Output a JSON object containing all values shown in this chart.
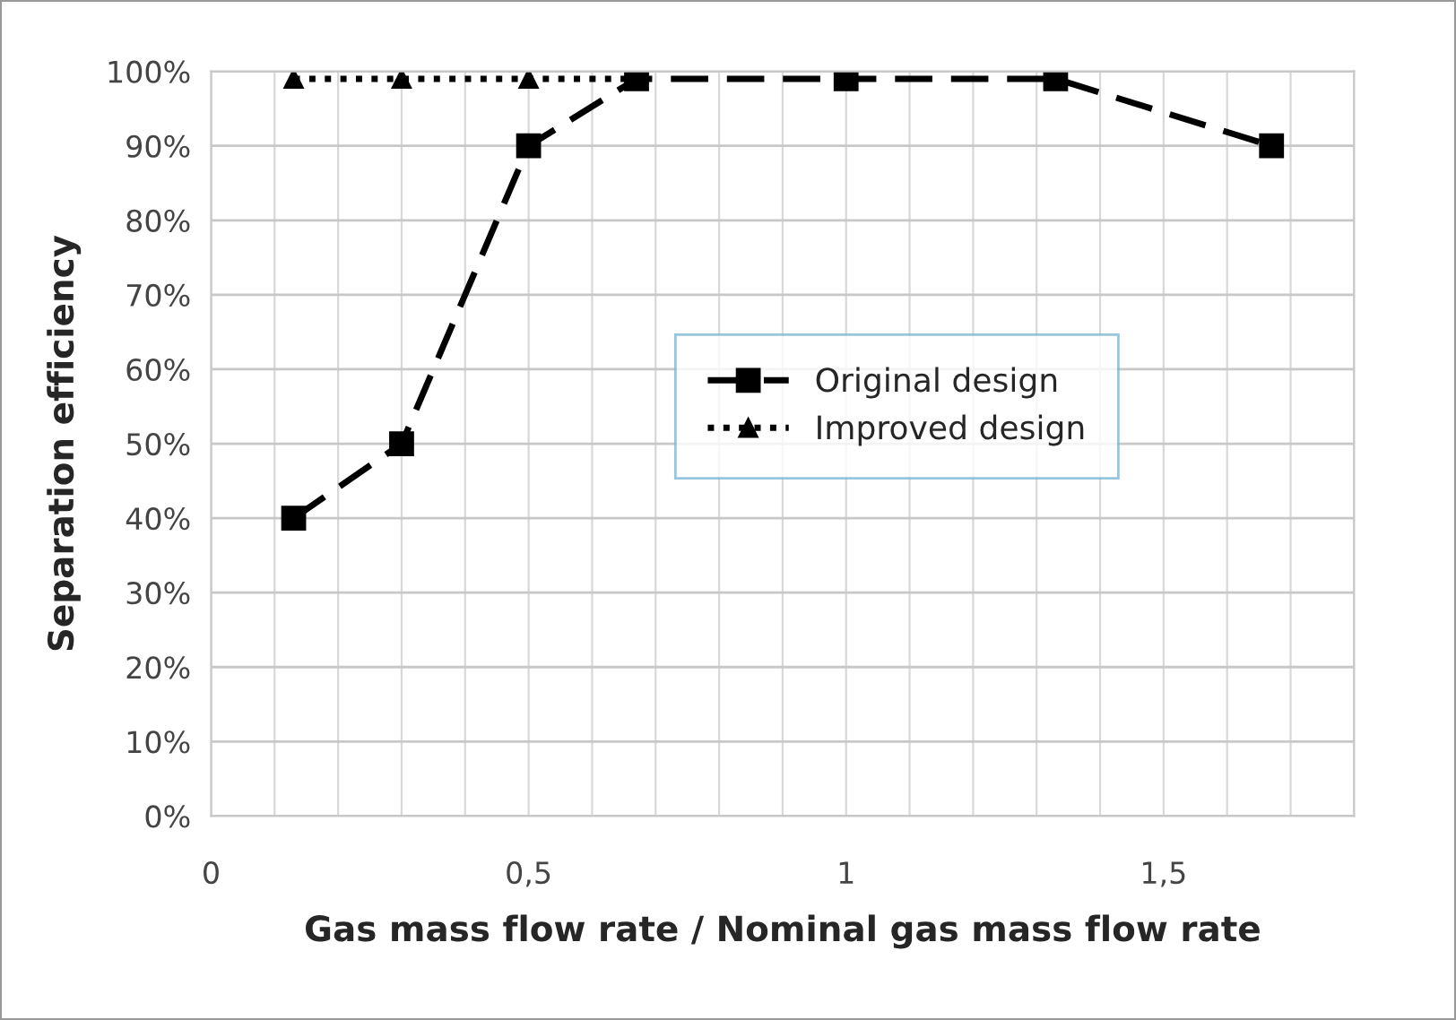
{
  "chart_data": {
    "type": "line",
    "xlabel": "Gas mass flow rate / Nominal gas mass flow rate",
    "ylabel": "Separation efficiency",
    "x": [
      0.13,
      0.3,
      0.5,
      0.67,
      1.0,
      1.33,
      1.67
    ],
    "series": [
      {
        "name": "Original design",
        "color": "#000000",
        "marker": "square",
        "line_style": "dashed",
        "values": [
          40,
          50,
          90,
          99,
          99,
          99,
          90
        ]
      },
      {
        "name": "Improved design",
        "color": "#000000",
        "marker": "triangle",
        "line_style": "dotted",
        "values": [
          99,
          99,
          99,
          99,
          null,
          null,
          null
        ]
      }
    ],
    "xlim": [
      0,
      1.8
    ],
    "xticks": [
      0,
      {
        "value": 0.5,
        "label": "0,5"
      },
      1,
      {
        "value": 1.5,
        "label": "1,5"
      }
    ],
    "ylim": [
      0,
      100
    ],
    "yticks": [
      {
        "value": 0,
        "label": "0%"
      },
      {
        "value": 10,
        "label": "10%"
      },
      {
        "value": 20,
        "label": "20%"
      },
      {
        "value": 30,
        "label": "30%"
      },
      {
        "value": 40,
        "label": "40%"
      },
      {
        "value": 50,
        "label": "50%"
      },
      {
        "value": 60,
        "label": "60%"
      },
      {
        "value": 70,
        "label": "70%"
      },
      {
        "value": 80,
        "label": "80%"
      },
      {
        "value": 90,
        "label": "90%"
      },
      {
        "value": 100,
        "label": "100%"
      }
    ],
    "grid": true,
    "legend": "right"
  }
}
